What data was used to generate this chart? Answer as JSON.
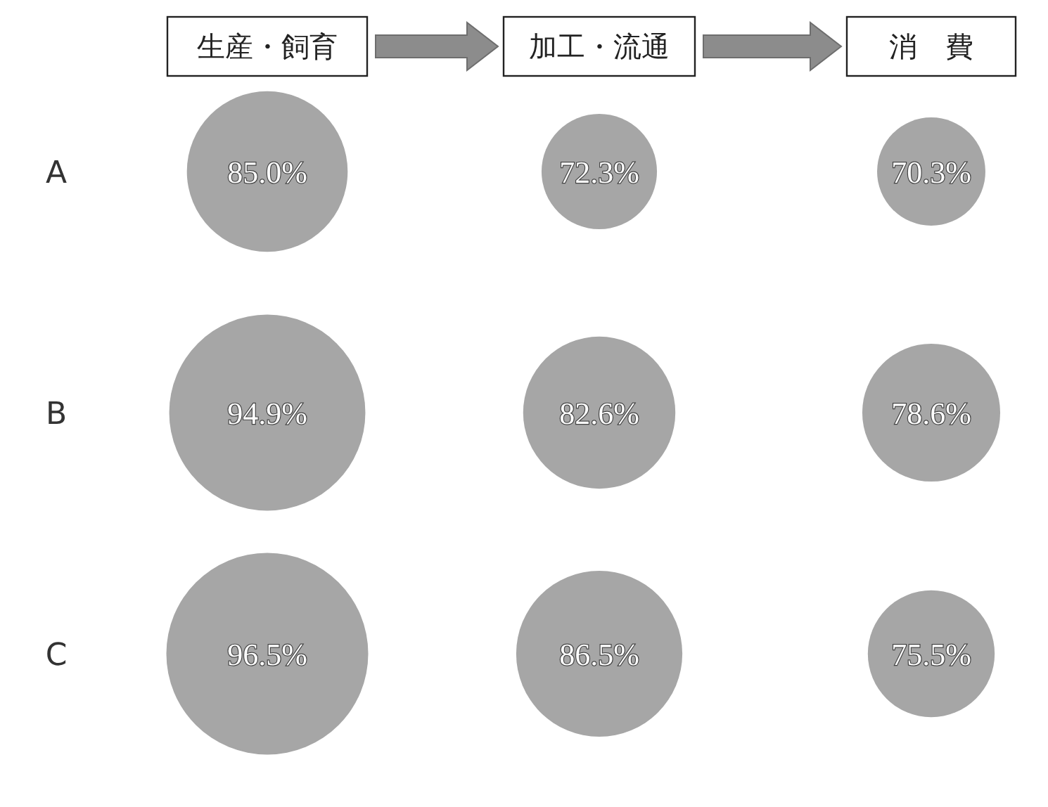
{
  "chart_data": {
    "type": "heatmap",
    "categories": [
      "生産・飼育",
      "加工・流通",
      "消　費"
    ],
    "y_categories": [
      "A",
      "B",
      "C"
    ],
    "cells": [
      [
        85.0,
        72.3,
        70.3
      ],
      [
        94.9,
        82.6,
        78.6
      ],
      [
        96.5,
        86.5,
        75.5
      ]
    ],
    "cell_labels": [
      [
        "85.0%",
        "72.3%",
        "70.3%"
      ],
      [
        "94.9%",
        "82.6%",
        "78.6%"
      ],
      [
        "96.5%",
        "86.5%",
        "75.5%"
      ]
    ],
    "data_labels": true,
    "color": "#a6a6a6"
  }
}
